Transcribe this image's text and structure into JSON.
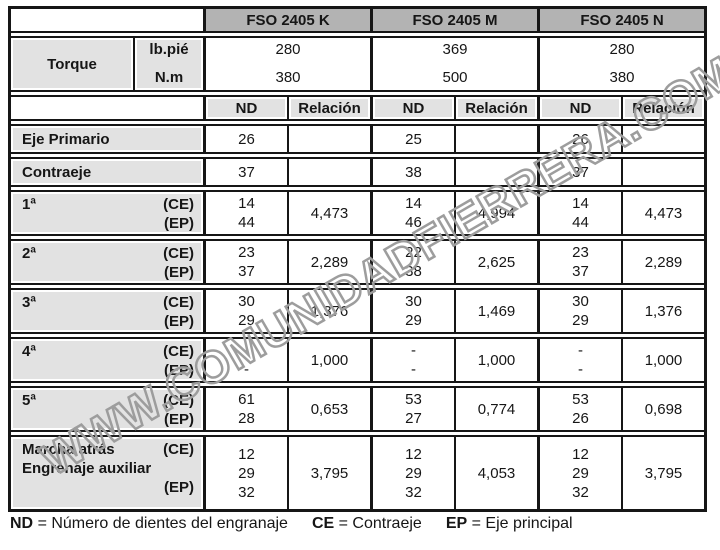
{
  "watermark": "WWW.COMUNIDADFIERRERA.COM",
  "header": {
    "models": [
      "FSO 2405 K",
      "FSO 2405 M",
      "FSO 2405 N"
    ]
  },
  "torque": {
    "label": "Torque",
    "units": "lb.pié\nN.m",
    "values": [
      "280\n380",
      "369\n500",
      "280\n380"
    ]
  },
  "cols": {
    "nd": "ND",
    "ratio": "Relación"
  },
  "rows": [
    {
      "label": "Eje Primario",
      "marks": "",
      "nd": [
        "26",
        "25",
        "26"
      ],
      "ratio": [
        "",
        "",
        ""
      ]
    },
    {
      "label": "Contraeje",
      "marks": "",
      "nd": [
        "37",
        "38",
        "37"
      ],
      "ratio": [
        "",
        "",
        ""
      ]
    },
    {
      "label": "1ª",
      "marks": "(CE)\n(EP)",
      "nd": [
        "14\n44",
        "14\n46",
        "14\n44"
      ],
      "ratio": [
        "4,473",
        "4,994",
        "4,473"
      ]
    },
    {
      "label": "2ª",
      "marks": "(CE)\n(EP)",
      "nd": [
        "23\n37",
        "22\n38",
        "23\n37"
      ],
      "ratio": [
        "2,289",
        "2,625",
        "2,289"
      ]
    },
    {
      "label": "3ª",
      "marks": "(CE)\n(EP)",
      "nd": [
        "30\n29",
        "30\n29",
        "30\n29"
      ],
      "ratio": [
        "1,376",
        "1,469",
        "1,376"
      ]
    },
    {
      "label": "4ª",
      "marks": "(CE)\n(EP)",
      "nd": [
        "-\n-",
        "-\n-",
        "-\n-"
      ],
      "ratio": [
        "1,000",
        "1,000",
        "1,000"
      ]
    },
    {
      "label": "5ª",
      "marks": "(CE)\n(EP)",
      "nd": [
        "61\n28",
        "53\n27",
        "53\n26"
      ],
      "ratio": [
        "0,653",
        "0,774",
        "0,698"
      ]
    },
    {
      "label": "Marcha atrás\nEngrenaje auxiliar",
      "marks": "(CE)\n\n(EP)",
      "nd": [
        "12\n29\n32",
        "12\n29\n32",
        "12\n29\n32"
      ],
      "ratio": [
        "3,795",
        "4,053",
        "3,795"
      ]
    }
  ],
  "legend": [
    {
      "key": "ND",
      "text": "= Número de dientes del engranaje"
    },
    {
      "key": "CE",
      "text": "= Contraeje"
    },
    {
      "key": "EP",
      "text": "= Eje principal"
    }
  ]
}
